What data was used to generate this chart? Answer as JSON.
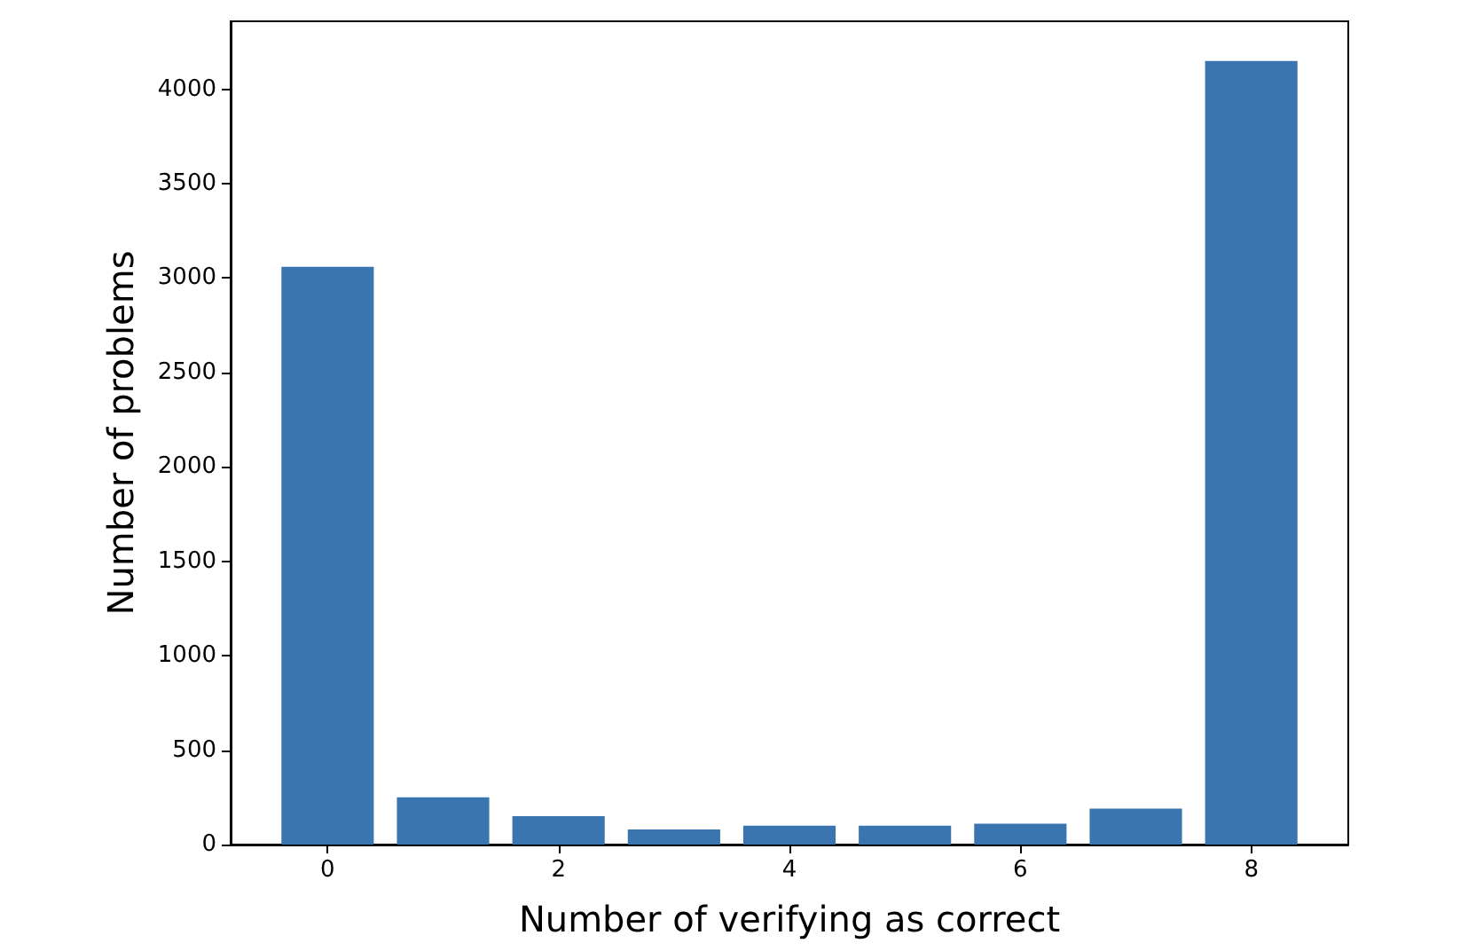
{
  "chart_data": {
    "type": "bar",
    "xlabel": "Number of verifying as correct",
    "ylabel": "Number of problems",
    "x": [
      0,
      1,
      2,
      3,
      4,
      5,
      6,
      7,
      8
    ],
    "values": [
      3060,
      250,
      150,
      80,
      100,
      100,
      110,
      190,
      4150
    ],
    "color": "#3a75af",
    "xlim": [
      -0.84,
      8.84
    ],
    "xticks": [
      0,
      2,
      4,
      6,
      8
    ],
    "ylim": [
      0,
      4360
    ],
    "yticks": [
      0,
      500,
      1000,
      1500,
      2000,
      2500,
      3000,
      3500,
      4000
    ],
    "grid": false
  }
}
